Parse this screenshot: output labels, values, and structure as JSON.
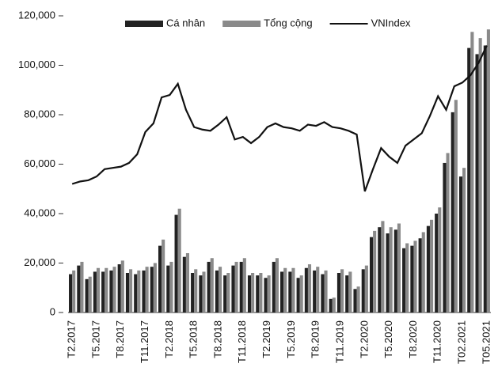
{
  "chart_data": {
    "type": "bar",
    "categories": [
      "T2.2017",
      null,
      null,
      "T5.2017",
      null,
      null,
      "T8.2017",
      null,
      null,
      "T11.2017",
      null,
      null,
      "T2.2018",
      null,
      null,
      "T5.2018",
      null,
      null,
      "T8.2018",
      null,
      null,
      "T11.2018",
      null,
      null,
      "T2.2019",
      null,
      null,
      "T5.2019",
      null,
      null,
      "T8.2019",
      null,
      null,
      "T11.2019",
      null,
      null,
      "T2.2020",
      null,
      null,
      "T5.2020",
      null,
      null,
      "T8.2020",
      null,
      null,
      "T11.2020",
      null,
      null,
      "T02.2021",
      null,
      null,
      "T05.2021"
    ],
    "series": [
      {
        "name": "Cá nhân",
        "type": "bar",
        "color": "#222222",
        "values": [
          15500,
          19000,
          13500,
          16500,
          16500,
          17000,
          19500,
          16000,
          15500,
          17000,
          18500,
          27000,
          19000,
          39500,
          22500,
          16000,
          15000,
          20500,
          17000,
          15000,
          19000,
          20500,
          15000,
          15000,
          14000,
          20500,
          16500,
          16500,
          14000,
          18000,
          17000,
          15500,
          5500,
          16000,
          15000,
          9500,
          17500,
          30500,
          34500,
          32000,
          33500,
          26000,
          27000,
          30000,
          35000,
          40000,
          60500,
          81000,
          55000,
          107000,
          104500,
          108000
        ]
      },
      {
        "name": "Tổng cộng",
        "type": "bar",
        "color": "#8a8a8a",
        "values": [
          17000,
          20500,
          14500,
          18000,
          18000,
          18500,
          21000,
          17500,
          17000,
          18500,
          20000,
          29500,
          20500,
          42000,
          24000,
          17500,
          16500,
          22000,
          18500,
          16000,
          20500,
          22000,
          16000,
          16000,
          15000,
          22000,
          18000,
          18000,
          15000,
          19500,
          18500,
          17000,
          6000,
          17500,
          16500,
          10500,
          19000,
          33000,
          37000,
          34500,
          36000,
          28000,
          29000,
          32500,
          37500,
          42500,
          64500,
          86000,
          58500,
          113500,
          111000,
          114500
        ]
      },
      {
        "name": "VNIndex",
        "type": "line",
        "color": "#111111",
        "values": [
          52000,
          53000,
          53500,
          55000,
          58000,
          58500,
          59000,
          60500,
          64000,
          73000,
          76500,
          87000,
          88000,
          92500,
          82000,
          75000,
          74000,
          73500,
          76000,
          79000,
          70000,
          71000,
          68500,
          71000,
          75000,
          76500,
          75000,
          74500,
          73500,
          76000,
          75500,
          77000,
          75000,
          74500,
          73500,
          72000,
          49000,
          58000,
          66500,
          63000,
          60500,
          67500,
          70000,
          72500,
          79500,
          87500,
          82000,
          91500,
          93000,
          96000,
          101000,
          108000
        ]
      }
    ],
    "ylim": [
      0,
      120000
    ],
    "yticks": [
      0,
      {
        "value": 20000,
        "label": "20,000"
      },
      {
        "value": 40000,
        "label": "40,000"
      },
      {
        "value": 60000,
        "label": "60,000"
      },
      {
        "value": 80000,
        "label": "80,000"
      },
      {
        "value": 100000,
        "label": "100,000"
      },
      {
        "value": 120000,
        "label": "120,000"
      }
    ],
    "legend": "top"
  }
}
